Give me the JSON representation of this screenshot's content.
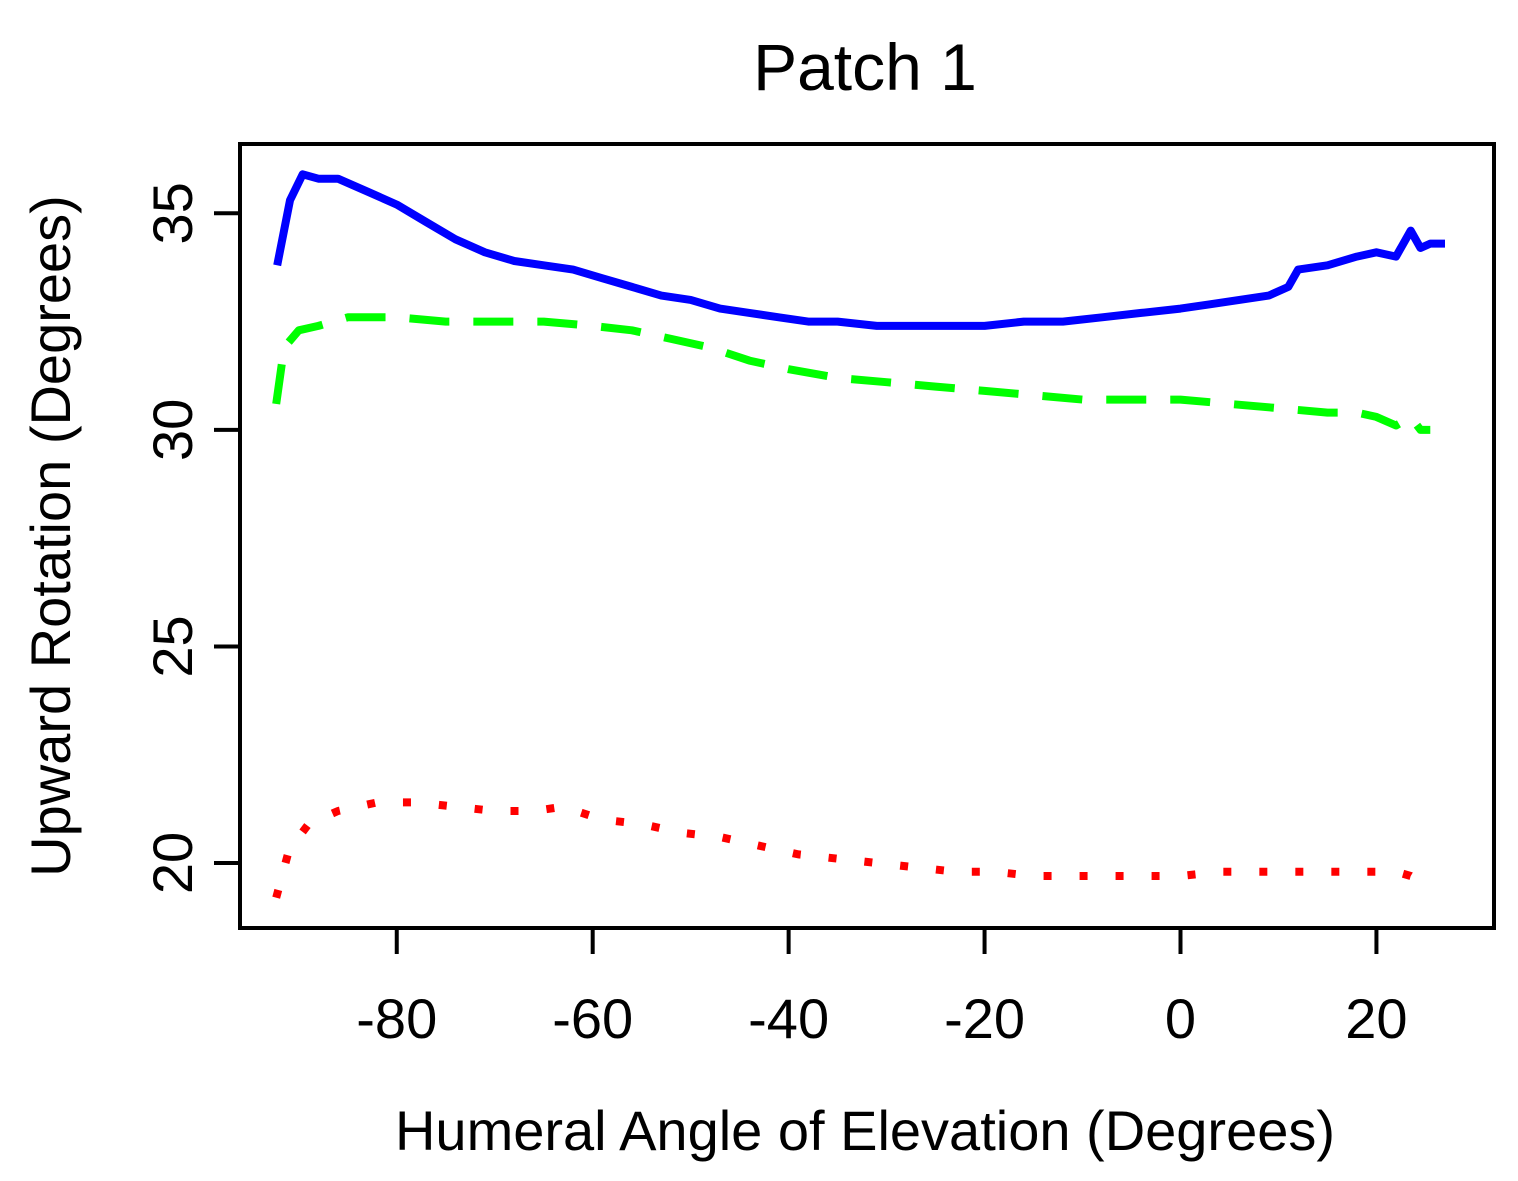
{
  "chart_data": {
    "type": "line",
    "title": "Patch 1",
    "xlabel": "Humeral Angle of Elevation (Degrees)",
    "ylabel": "Upward Rotation (Degrees)",
    "xlim": [
      -96,
      32
    ],
    "ylim": [
      18.5,
      36.6
    ],
    "xticks": [
      -80,
      -60,
      -40,
      -20,
      0,
      20
    ],
    "yticks": [
      20,
      25,
      30,
      35
    ],
    "grid": false,
    "legend": "none",
    "series": [
      {
        "color": "#0000ff",
        "style": "solid",
        "x": [
          -92.2,
          -90.9,
          -89.6,
          -88.0,
          -86.0,
          -83.0,
          -80.0,
          -77.0,
          -74.0,
          -71.0,
          -68.0,
          -65.0,
          -62.0,
          -59.0,
          -56.0,
          -53.0,
          -50.0,
          -47.0,
          -44.0,
          -41.0,
          -38.0,
          -35.0,
          -31.0,
          -28.0,
          -24.0,
          -20.0,
          -16.0,
          -12.0,
          -8.0,
          -4.0,
          0.0,
          3.0,
          6.0,
          9.0,
          11.0,
          12.0,
          15.0,
          18.0,
          20.0,
          22.0,
          23.5,
          24.5,
          25.5,
          27.0
        ],
        "y": [
          33.8,
          35.3,
          35.9,
          35.8,
          35.8,
          35.5,
          35.2,
          34.8,
          34.4,
          34.1,
          33.9,
          33.8,
          33.7,
          33.5,
          33.3,
          33.1,
          33.0,
          32.8,
          32.7,
          32.6,
          32.5,
          32.5,
          32.4,
          32.4,
          32.4,
          32.4,
          32.5,
          32.5,
          32.6,
          32.7,
          32.8,
          32.9,
          33.0,
          33.1,
          33.3,
          33.7,
          33.8,
          34.0,
          34.1,
          34.0,
          34.6,
          34.2,
          34.3,
          34.3
        ]
      },
      {
        "color": "#00ff00",
        "style": "dashed",
        "x": [
          -92.3,
          -91.5,
          -90.0,
          -88.0,
          -85.0,
          -80.0,
          -75.0,
          -70.0,
          -65.0,
          -60.0,
          -56.0,
          -52.0,
          -48.0,
          -44.0,
          -40.0,
          -35.0,
          -30.0,
          -25.0,
          -20.0,
          -15.0,
          -10.0,
          -5.0,
          0.0,
          5.0,
          10.0,
          15.0,
          18.0,
          20.0,
          22.0,
          23.5,
          24.5,
          25.5
        ],
        "y": [
          30.6,
          31.9,
          32.3,
          32.4,
          32.6,
          32.6,
          32.5,
          32.5,
          32.5,
          32.4,
          32.3,
          32.1,
          31.9,
          31.6,
          31.4,
          31.2,
          31.1,
          31.0,
          30.9,
          30.8,
          30.7,
          30.7,
          30.7,
          30.6,
          30.5,
          30.4,
          30.4,
          30.3,
          30.1,
          30.3,
          30.0,
          30.0
        ]
      },
      {
        "color": "#ff0000",
        "style": "dotted",
        "x": [
          -92.3,
          -91.0,
          -89.0,
          -86.0,
          -82.0,
          -78.0,
          -74.0,
          -70.0,
          -66.0,
          -63.0,
          -59.0,
          -55.0,
          -51.0,
          -47.0,
          -43.0,
          -39.0,
          -35.0,
          -31.0,
          -27.0,
          -23.0,
          -19.0,
          -15.0,
          -11.0,
          -7.0,
          -3.0,
          0.0,
          4.0,
          8.0,
          12.0,
          16.0,
          20.0,
          22.0,
          23.5,
          25.0,
          26.0
        ],
        "y": [
          19.2,
          20.3,
          20.9,
          21.2,
          21.4,
          21.4,
          21.3,
          21.2,
          21.2,
          21.3,
          21.0,
          20.9,
          20.7,
          20.6,
          20.4,
          20.2,
          20.1,
          20.0,
          19.9,
          19.8,
          19.8,
          19.7,
          19.7,
          19.7,
          19.7,
          19.7,
          19.8,
          19.8,
          19.8,
          19.8,
          19.8,
          19.8,
          19.7,
          19.5,
          19.5
        ]
      }
    ]
  }
}
